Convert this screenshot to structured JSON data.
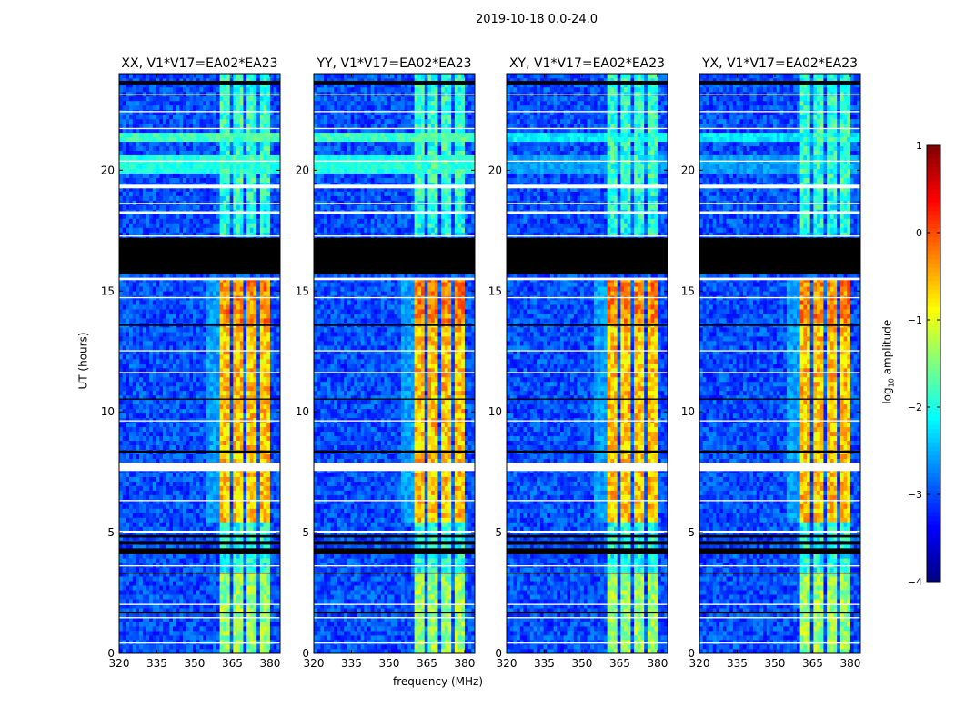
{
  "suptitle": "2019-10-18 0.0-24.0",
  "xlabel": "frequency (MHz)",
  "ylabel": "UT (hours)",
  "colorbar": {
    "label_prefix": "log",
    "label_sub": "10",
    "label_suffix": " amplitude",
    "ticks": [
      "1",
      "0",
      "−1",
      "−2",
      "−3",
      "−4"
    ],
    "range": [
      -4,
      1
    ],
    "colormap": "jet"
  },
  "chart_data": {
    "type": "heatmap",
    "title": "2019-10-18 0.0-24.0",
    "xlabel": "frequency (MHz)",
    "ylabel": "UT (hours)",
    "xlim": [
      320,
      384
    ],
    "ylim": [
      0,
      24
    ],
    "xticks": [
      "320",
      "335",
      "350",
      "365",
      "380"
    ],
    "yticks": [
      "0",
      "5",
      "10",
      "15",
      "20"
    ],
    "zlim": [
      -4,
      1
    ],
    "zlabel": "log10 amplitude",
    "background_level": -3.0,
    "band_columns_mhz": [
      [
        360.3,
        364.6
      ],
      [
        365.3,
        369.6
      ],
      [
        370.4,
        374.7
      ],
      [
        375.5,
        379.7
      ]
    ],
    "band_levels": [
      {
        "t": [
          0,
          3.3
        ],
        "level": -1.4
      },
      {
        "t": [
          3.3,
          5.5
        ],
        "level": -2.0
      },
      {
        "t": [
          5.5,
          13.6
        ],
        "level": -0.6
      },
      {
        "t": [
          13.6,
          15.5
        ],
        "level": -0.3
      },
      {
        "t": [
          17.3,
          19.0
        ],
        "level": -2.0
      },
      {
        "t": [
          19.0,
          24
        ],
        "level": -1.9
      }
    ],
    "flagged_time_ranges_black": [
      [
        15.7,
        17.2
      ],
      [
        23.55,
        23.7
      ],
      [
        4.1,
        4.35
      ],
      [
        4.5,
        4.65
      ],
      [
        4.8,
        4.9
      ],
      [
        3.3,
        3.35
      ],
      [
        8.3,
        8.4
      ],
      [
        13.55,
        13.62
      ],
      [
        10.5,
        10.55
      ],
      [
        1.65,
        1.72
      ]
    ],
    "gap_time_ranges_white": [
      [
        7.55,
        7.9
      ],
      [
        15.45,
        15.55
      ],
      [
        19.25,
        19.4
      ],
      [
        5.0,
        5.08
      ],
      [
        2.0,
        2.05
      ],
      [
        1.45,
        1.5
      ],
      [
        0.4,
        0.45
      ],
      [
        9.6,
        9.65
      ],
      [
        12.5,
        12.55
      ],
      [
        11.6,
        11.65
      ],
      [
        18.2,
        18.3
      ],
      [
        18.6,
        18.65
      ],
      [
        22.4,
        22.45
      ],
      [
        21.7,
        21.75
      ],
      [
        20.35,
        20.4
      ],
      [
        14.7,
        14.75
      ],
      [
        6.3,
        6.35
      ],
      [
        3.6,
        3.65
      ],
      [
        23.1,
        23.15
      ],
      [
        17.25,
        17.3
      ]
    ],
    "panels": [
      {
        "title": "XX, V1*V17=EA02*EA23",
        "broadband_20h": -2.0,
        "rfi_21h": -1.8
      },
      {
        "title": "YY, V1*V17=EA02*EA23",
        "broadband_20h": -2.0,
        "rfi_21h": -1.8
      },
      {
        "title": "XY, V1*V17=EA02*EA23",
        "broadband_20h": -2.6,
        "rfi_21h": -2.2
      },
      {
        "title": "YX, V1*V17=EA02*EA23",
        "broadband_20h": -2.6,
        "rfi_21h": -2.2
      }
    ]
  }
}
